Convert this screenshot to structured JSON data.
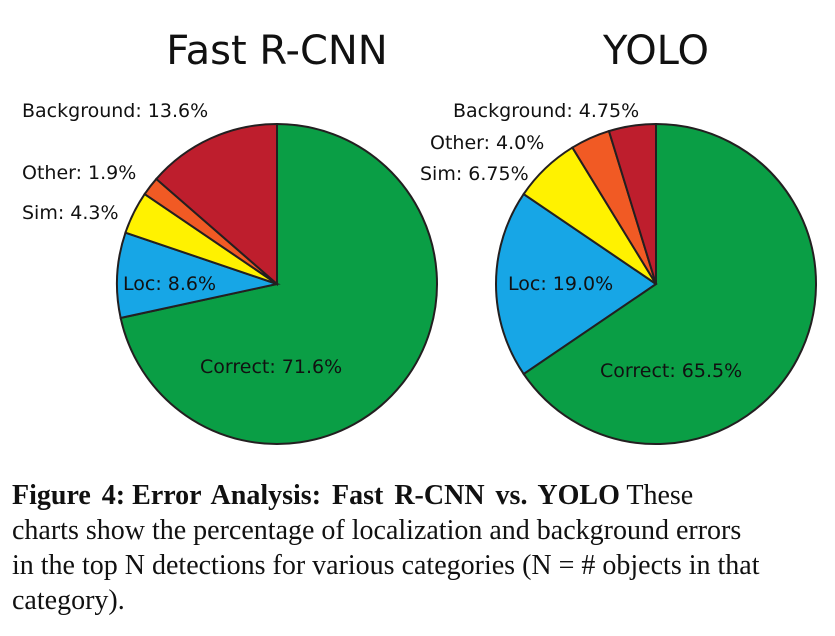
{
  "chart_data": [
    {
      "type": "pie",
      "title": "Fast R-CNN",
      "start": "top",
      "direction": "clockwise",
      "slices": [
        {
          "name": "Correct",
          "value": 71.6,
          "label": "Correct: 71.6%",
          "color": "#0a9e45"
        },
        {
          "name": "Loc",
          "value": 8.6,
          "label": "Loc: 8.6%",
          "color": "#17a6e6"
        },
        {
          "name": "Sim",
          "value": 4.3,
          "label": "Sim: 4.3%",
          "color": "#fff200"
        },
        {
          "name": "Other",
          "value": 1.9,
          "label": "Other: 1.9%",
          "color": "#f15a24"
        },
        {
          "name": "Background",
          "value": 13.6,
          "label": "Background: 13.6%",
          "color": "#be1e2d"
        }
      ]
    },
    {
      "type": "pie",
      "title": "YOLO",
      "start": "top",
      "direction": "clockwise",
      "slices": [
        {
          "name": "Correct",
          "value": 65.5,
          "label": "Correct: 65.5%",
          "color": "#0a9e45"
        },
        {
          "name": "Loc",
          "value": 19.0,
          "label": "Loc: 19.0%",
          "color": "#17a6e6"
        },
        {
          "name": "Sim",
          "value": 6.75,
          "label": "Sim: 6.75%",
          "color": "#fff200"
        },
        {
          "name": "Other",
          "value": 4.0,
          "label": "Other: 4.0%",
          "color": "#f15a24"
        },
        {
          "name": "Background",
          "value": 4.75,
          "label": "Background: 4.75%",
          "color": "#be1e2d"
        }
      ]
    }
  ],
  "caption": {
    "label": "Figure 4:",
    "title": "Error Analysis: Fast R-CNN vs. YOLO",
    "line1_rest": "These",
    "lines": [
      "charts show the percentage of localization and background errors",
      "in the top N detections for various categories (N = # objects in that",
      "category)."
    ]
  }
}
